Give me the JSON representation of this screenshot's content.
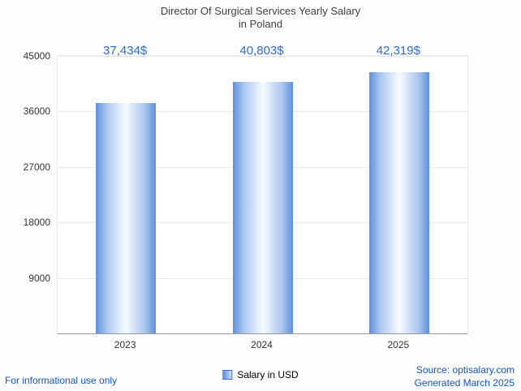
{
  "title": {
    "line1": "Director Of Surgical Services Yearly Salary",
    "line2": "in Poland"
  },
  "chart_data": {
    "type": "bar",
    "categories": [
      "2023",
      "2024",
      "2025"
    ],
    "values": [
      37434,
      40803,
      42319
    ],
    "value_labels": [
      "37,434$",
      "40,803$",
      "42,319$"
    ],
    "series_name": "Salary in USD",
    "ylim": [
      0,
      45000
    ],
    "yticks": [
      9000,
      18000,
      27000,
      36000,
      45000
    ],
    "grid": "horizontal",
    "legend_position": "bottom",
    "bar_color_edge": "#5e91de",
    "bar_color_center": "#f7fbff",
    "value_label_color": "#2a6bdb"
  },
  "legend": {
    "label": "Salary in USD"
  },
  "footer": {
    "disclaimer": "For informational use only",
    "source": "Source: optisalary.com",
    "generated": "Generated March 2025"
  }
}
